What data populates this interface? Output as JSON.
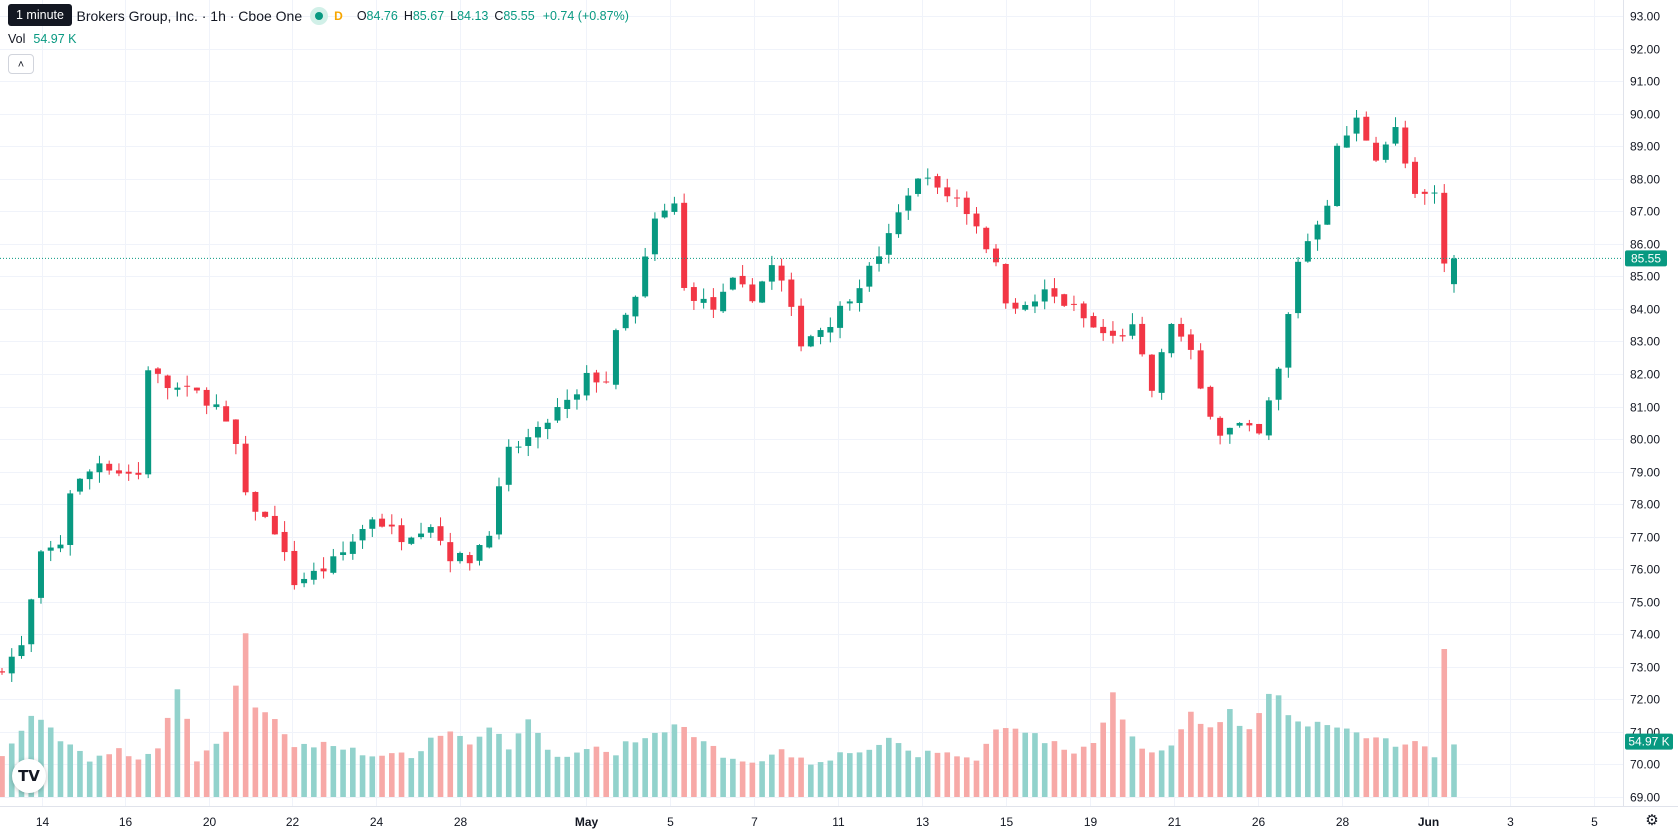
{
  "tooltip": "1 minute",
  "legend": {
    "title": "Interactive Brokers Group, Inc. · 1h · Cboe One",
    "market_dot_icon": "market-open-dot-icon",
    "market_letter": "D",
    "open_label": "O",
    "open_value": "84.76",
    "high_label": "H",
    "high_value": "85.67",
    "low_label": "L",
    "low_value": "84.13",
    "close_label": "C",
    "close_value": "85.55",
    "change": "+0.74 (+0.87%)"
  },
  "volume_legend": {
    "label": "Vol",
    "value": "54.97 K"
  },
  "collapse_icon": "chevron-up-icon",
  "logo_text": "TV",
  "settings_icon": "gear-icon",
  "colors": {
    "up": "#089981",
    "down": "#f23645",
    "up_volume": "#92d2cc",
    "down_volume": "#f7a9a7"
  },
  "chart_data": {
    "type": "candlestick",
    "y_range": [
      69,
      93
    ],
    "price_ticks": [
      "69.00",
      "70.00",
      "71.00",
      "72.00",
      "73.00",
      "74.00",
      "75.00",
      "76.00",
      "77.00",
      "78.00",
      "79.00",
      "80.00",
      "81.00",
      "82.00",
      "83.00",
      "84.00",
      "85.00",
      "86.00",
      "87.00",
      "88.00",
      "89.00",
      "90.00",
      "91.00",
      "92.00",
      "93.00"
    ],
    "time_ticks": [
      "14",
      "16",
      "20",
      "22",
      "24",
      "28",
      "May",
      "5",
      "7",
      "11",
      "13",
      "15",
      "19",
      "21",
      "26",
      "28",
      "Jun",
      "3",
      "5"
    ],
    "last_price_label": "85.55",
    "last_volume_label": "54.97 K",
    "price_path_anchors": [
      [
        0,
        73.0
      ],
      [
        2,
        73.6
      ],
      [
        4,
        76.4
      ],
      [
        6,
        76.8
      ],
      [
        7,
        78.4
      ],
      [
        10,
        79.3
      ],
      [
        12,
        79.0
      ],
      [
        14,
        78.9
      ],
      [
        15,
        82.2
      ],
      [
        17,
        81.6
      ],
      [
        20,
        81.4
      ],
      [
        22,
        81.0
      ],
      [
        24,
        79.8
      ],
      [
        25,
        78.2
      ],
      [
        28,
        77.2
      ],
      [
        30,
        75.6
      ],
      [
        33,
        76.0
      ],
      [
        35,
        76.5
      ],
      [
        38,
        77.6
      ],
      [
        41,
        77.0
      ],
      [
        44,
        77.4
      ],
      [
        46,
        76.4
      ],
      [
        48,
        76.3
      ],
      [
        50,
        77.2
      ],
      [
        52,
        79.6
      ],
      [
        55,
        80.2
      ],
      [
        57,
        80.9
      ],
      [
        59,
        81.3
      ],
      [
        60,
        81.9
      ],
      [
        62,
        81.8
      ],
      [
        63,
        83.2
      ],
      [
        65,
        84.3
      ],
      [
        67,
        86.7
      ],
      [
        69,
        87.2
      ],
      [
        70,
        84.6
      ],
      [
        73,
        84.0
      ],
      [
        75,
        84.8
      ],
      [
        77,
        84.4
      ],
      [
        79,
        85.3
      ],
      [
        80,
        84.8
      ],
      [
        82,
        83.0
      ],
      [
        85,
        83.6
      ],
      [
        87,
        84.4
      ],
      [
        89,
        85.2
      ],
      [
        91,
        86.2
      ],
      [
        93,
        87.6
      ],
      [
        95,
        88.2
      ],
      [
        96,
        87.6
      ],
      [
        98,
        87.4
      ],
      [
        100,
        86.6
      ],
      [
        102,
        85.3
      ],
      [
        103,
        84.3
      ],
      [
        105,
        84.0
      ],
      [
        107,
        84.5
      ],
      [
        110,
        84.0
      ],
      [
        112,
        83.4
      ],
      [
        114,
        83.1
      ],
      [
        116,
        83.4
      ],
      [
        118,
        81.5
      ],
      [
        120,
        83.6
      ],
      [
        122,
        82.6
      ],
      [
        123,
        81.5
      ],
      [
        125,
        80.2
      ],
      [
        127,
        80.4
      ],
      [
        129,
        80.1
      ],
      [
        131,
        82.1
      ],
      [
        133,
        85.5
      ],
      [
        136,
        87.3
      ],
      [
        137,
        88.9
      ],
      [
        139,
        89.8
      ],
      [
        141,
        88.7
      ],
      [
        143,
        89.5
      ],
      [
        145,
        87.4
      ],
      [
        147,
        87.5
      ],
      [
        148,
        85.4
      ],
      [
        149,
        85.55
      ]
    ],
    "volume_path_anchors": [
      [
        0,
        70.2
      ],
      [
        3,
        71.5
      ],
      [
        6,
        70.8
      ],
      [
        9,
        70.2
      ],
      [
        12,
        70.4
      ],
      [
        14,
        70.1
      ],
      [
        16,
        70.6
      ],
      [
        18,
        72.4
      ],
      [
        20,
        70.2
      ],
      [
        23,
        70.9
      ],
      [
        25,
        74.1
      ],
      [
        26,
        71.7
      ],
      [
        28,
        71.3
      ],
      [
        30,
        70.6
      ],
      [
        33,
        70.6
      ],
      [
        36,
        70.5
      ],
      [
        39,
        70.2
      ],
      [
        42,
        70.3
      ],
      [
        44,
        70.7
      ],
      [
        46,
        71.1
      ],
      [
        48,
        70.6
      ],
      [
        50,
        71.2
      ],
      [
        52,
        70.5
      ],
      [
        54,
        71.3
      ],
      [
        56,
        70.4
      ],
      [
        58,
        70.2
      ],
      [
        60,
        70.5
      ],
      [
        63,
        70.4
      ],
      [
        65,
        70.8
      ],
      [
        67,
        70.9
      ],
      [
        69,
        71.3
      ],
      [
        71,
        70.8
      ],
      [
        74,
        70.3
      ],
      [
        77,
        70.1
      ],
      [
        80,
        70.4
      ],
      [
        83,
        70.1
      ],
      [
        86,
        70.3
      ],
      [
        89,
        70.5
      ],
      [
        91,
        70.7
      ],
      [
        94,
        70.3
      ],
      [
        97,
        70.4
      ],
      [
        100,
        70.1
      ],
      [
        102,
        71.1
      ],
      [
        104,
        71.2
      ],
      [
        106,
        70.9
      ],
      [
        108,
        70.6
      ],
      [
        110,
        70.4
      ],
      [
        112,
        70.6
      ],
      [
        114,
        72.2
      ],
      [
        116,
        70.8
      ],
      [
        118,
        70.3
      ],
      [
        120,
        70.6
      ],
      [
        122,
        71.5
      ],
      [
        124,
        71.1
      ],
      [
        126,
        71.6
      ],
      [
        128,
        71.0
      ],
      [
        130,
        72.1
      ],
      [
        131,
        72.0
      ],
      [
        133,
        71.2
      ],
      [
        135,
        71.3
      ],
      [
        137,
        71.1
      ],
      [
        139,
        70.9
      ],
      [
        141,
        70.9
      ],
      [
        143,
        70.6
      ],
      [
        145,
        70.6
      ],
      [
        147,
        70.3
      ],
      [
        148,
        73.5
      ],
      [
        149,
        70.6
      ]
    ]
  }
}
